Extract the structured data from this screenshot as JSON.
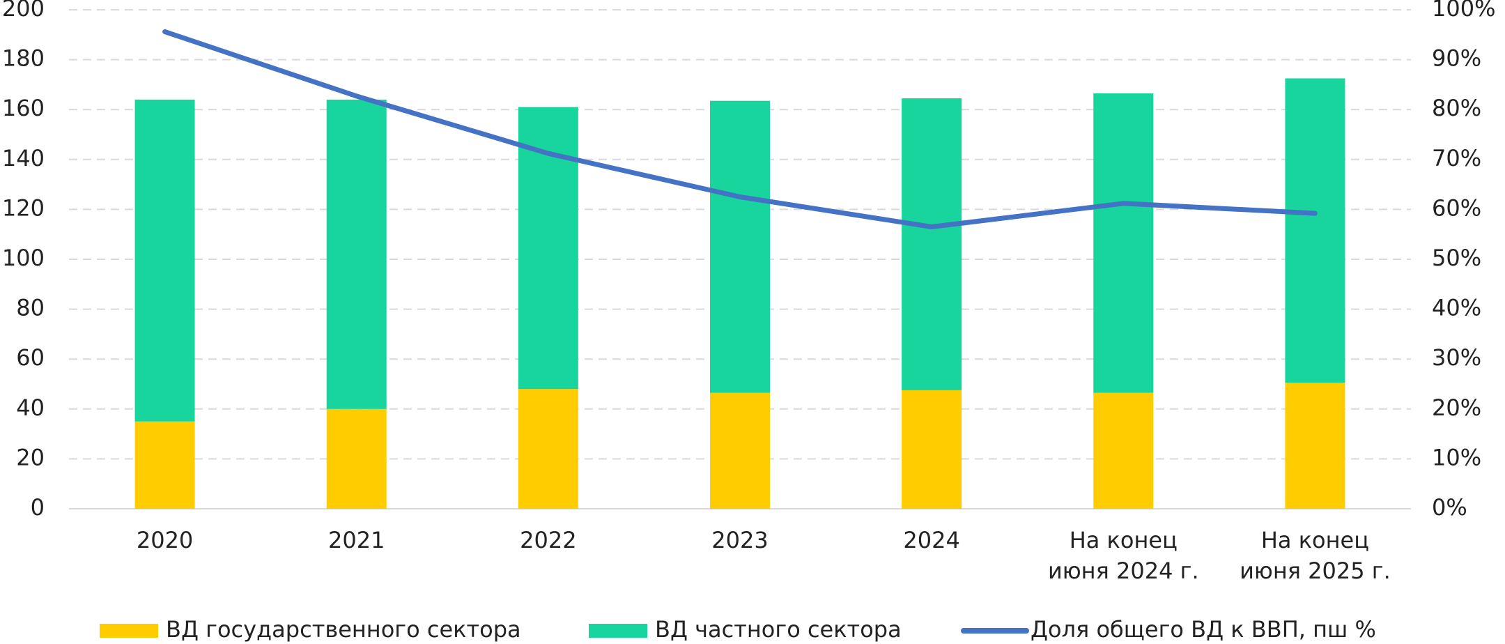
{
  "chart_data": {
    "type": "bar",
    "stacked": true,
    "categories": [
      "2020",
      "2021",
      "2022",
      "2023",
      "2024",
      "На конец июня 2024 г.",
      "На конец июня 2025 г."
    ],
    "series": [
      {
        "name": "ВД государственного сектора",
        "color": "#ffcc00",
        "values": [
          35,
          40,
          48,
          46.5,
          47.5,
          46.5,
          50.5
        ]
      },
      {
        "name": "ВД частного сектора",
        "color": "#17d59c",
        "values": [
          129,
          124,
          113,
          117,
          117,
          120,
          122
        ]
      },
      {
        "name": "Доля общего ВД к ВВП, пш %",
        "type": "line",
        "axis": "y2",
        "color": "#4472c4",
        "values": [
          95.6,
          82.7,
          71.2,
          62.5,
          56.5,
          61.2,
          59.2
        ]
      }
    ],
    "ylim": [
      0,
      200
    ],
    "yticks": [
      0,
      20,
      40,
      60,
      80,
      100,
      120,
      140,
      160,
      180,
      200
    ],
    "y2lim": [
      0,
      100
    ],
    "y2ticks": [
      {
        "value": 0,
        "label": "0%"
      },
      {
        "value": 10,
        "label": "10%"
      },
      {
        "value": 20,
        "label": "20%"
      },
      {
        "value": 30,
        "label": "30%"
      },
      {
        "value": 40,
        "label": "40%"
      },
      {
        "value": 50,
        "label": "50%"
      },
      {
        "value": 60,
        "label": "60%"
      },
      {
        "value": 70,
        "label": "70%"
      },
      {
        "value": 80,
        "label": "80%"
      },
      {
        "value": 90,
        "label": "90%"
      },
      {
        "value": 100,
        "label": "100%"
      }
    ],
    "grid": true,
    "legend": "bottom"
  }
}
